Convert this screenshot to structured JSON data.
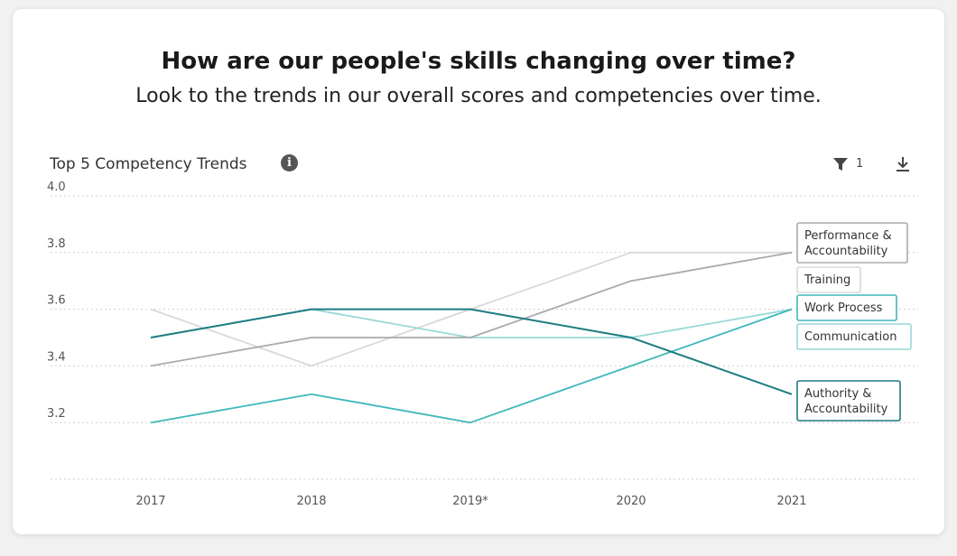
{
  "header": {
    "title": "How are our people's skills changing over time?",
    "subtitle": "Look to the trends in our overall scores and competencies over time."
  },
  "widget": {
    "title": "Top 5 Competency Trends",
    "info_icon": "info-icon",
    "filter_icon": "filter-icon",
    "filter_count": "1",
    "download_icon": "download-icon"
  },
  "chart_data": {
    "type": "line",
    "x": [
      "2017",
      "2018",
      "2019*",
      "2020",
      "2021"
    ],
    "ylim": [
      3.0,
      4.0
    ],
    "yticks": [
      "4.0",
      "3.8",
      "3.6",
      "3.4",
      "3.2"
    ],
    "grid": true,
    "legend": "right",
    "series": [
      {
        "name": "Performance & Accountability",
        "label_lines": [
          "Performance &",
          "Accountability"
        ],
        "values": [
          3.4,
          3.5,
          3.5,
          3.7,
          3.8
        ],
        "color": "#aaaaaa"
      },
      {
        "name": "Training",
        "label_lines": [
          "Training"
        ],
        "values": [
          3.6,
          3.4,
          3.6,
          3.8,
          3.8
        ],
        "color": "#d9d9d9"
      },
      {
        "name": "Work Process",
        "label_lines": [
          "Work Process"
        ],
        "values": [
          3.2,
          3.3,
          3.2,
          3.4,
          3.6
        ],
        "color": "#3fb8bb"
      },
      {
        "name": "Communication",
        "label_lines": [
          "Communication"
        ],
        "values": [
          3.5,
          3.6,
          3.5,
          3.5,
          3.6
        ],
        "color": "#97d7d8"
      },
      {
        "name": "Authority & Accountability",
        "label_lines": [
          "Authority &",
          "Accountability"
        ],
        "values": [
          3.5,
          3.6,
          3.6,
          3.5,
          3.3
        ],
        "color": "#1d7c82"
      }
    ]
  }
}
